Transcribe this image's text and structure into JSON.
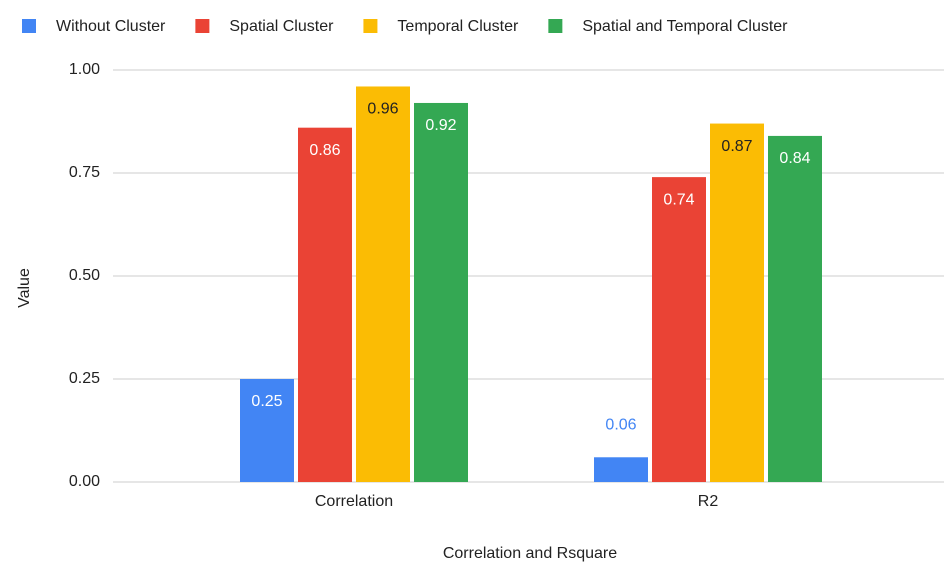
{
  "chart_data": {
    "type": "bar",
    "x_label": "Correlation and Rsquare",
    "y_label": "Value",
    "categories": [
      "Correlation",
      "R2"
    ],
    "series": [
      {
        "name": "Without Cluster",
        "color": "#4285f4",
        "values": [
          0.25,
          0.06
        ]
      },
      {
        "name": "Spatial Cluster",
        "color": "#ea4335",
        "values": [
          0.86,
          0.74
        ]
      },
      {
        "name": "Temporal Cluster",
        "color": "#fbbc04",
        "values": [
          0.96,
          0.87
        ]
      },
      {
        "name": "Spatial and Temporal Cluster",
        "color": "#34a853",
        "values": [
          0.92,
          0.84
        ]
      }
    ],
    "ylim": [
      0,
      1
    ],
    "yticks": [
      {
        "value": 0,
        "label": "0.00"
      },
      {
        "value": 0.25,
        "label": "0.25"
      },
      {
        "value": 0.5,
        "label": "0.50"
      },
      {
        "value": 0.75,
        "label": "0.75"
      },
      {
        "value": 1,
        "label": "1.00"
      }
    ],
    "grid": true,
    "legend": "top"
  }
}
